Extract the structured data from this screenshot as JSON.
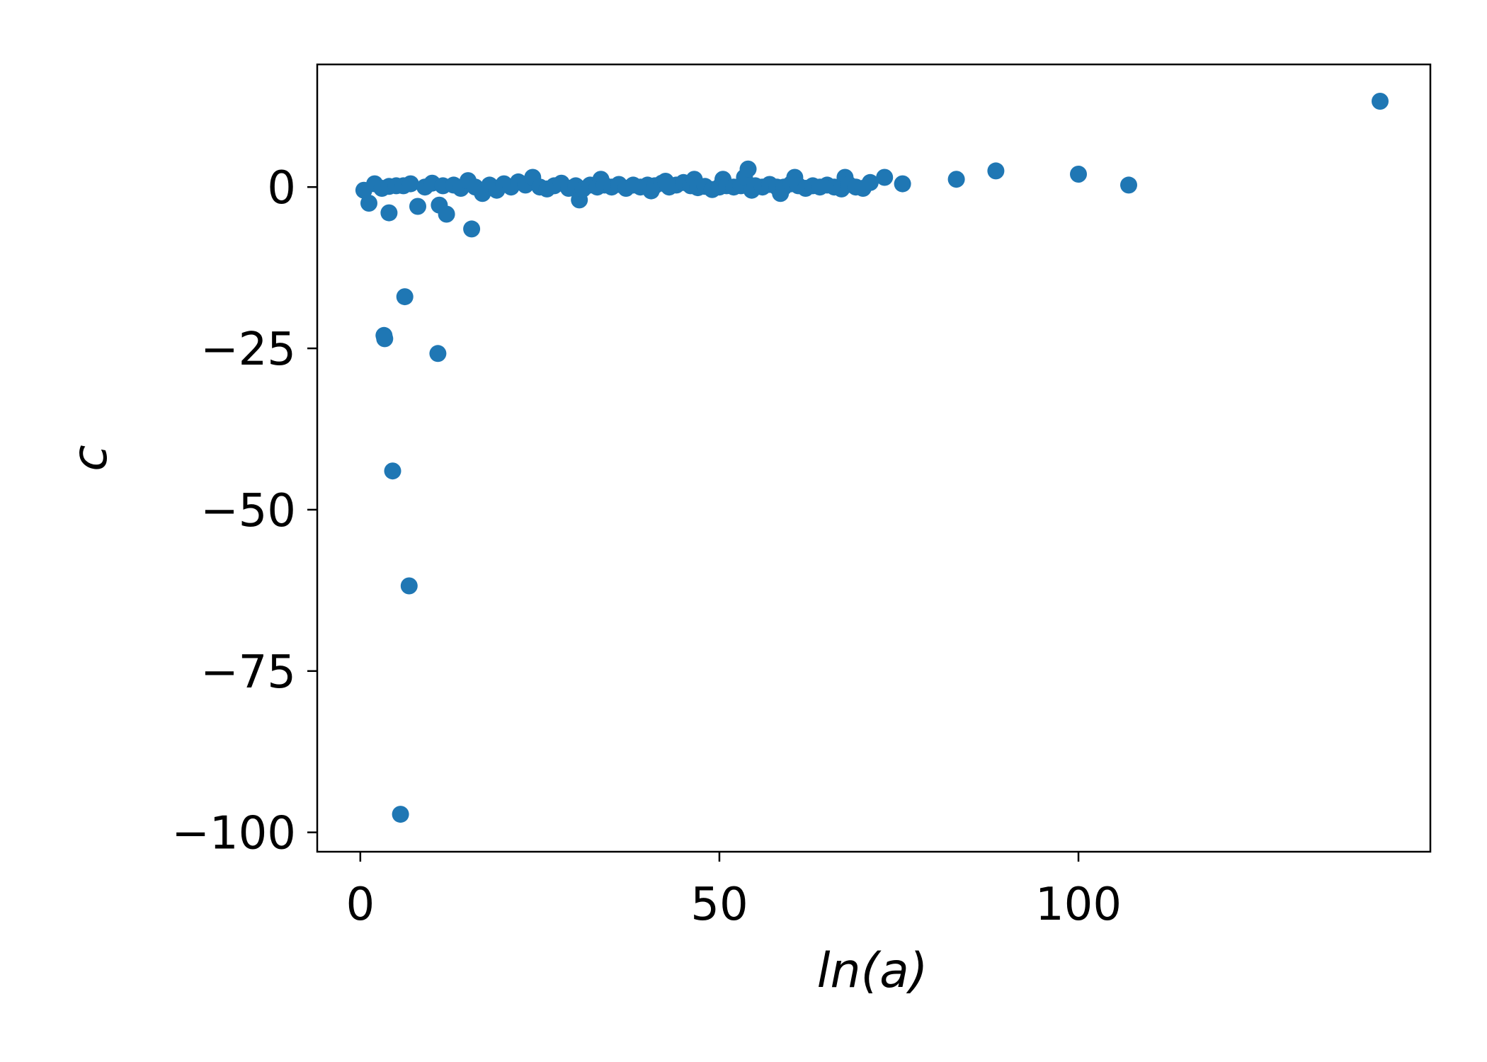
{
  "chart_data": {
    "type": "scatter",
    "title": "",
    "xlabel": "ln(a)",
    "ylabel": "c",
    "xlim": [
      -6,
      149
    ],
    "ylim": [
      -103,
      19
    ],
    "xticks": [
      0,
      50,
      100
    ],
    "xtick_labels": [
      "0",
      "50",
      "100"
    ],
    "yticks": [
      0,
      -25,
      -50,
      -75,
      -100
    ],
    "ytick_labels": [
      "0",
      "−25",
      "−50",
      "−75",
      "−100"
    ],
    "grid": false,
    "legend": "none",
    "marker_color": "#1f77b4",
    "series": [
      {
        "points": [
          [
            0.5,
            -0.5
          ],
          [
            1.2,
            -2.5
          ],
          [
            2.0,
            0.5
          ],
          [
            3.0,
            -0.2
          ],
          [
            4.0,
            0.1
          ],
          [
            5.0,
            0.2
          ],
          [
            4.0,
            -4.0
          ],
          [
            6.0,
            0.2
          ],
          [
            7.0,
            0.5
          ],
          [
            8.0,
            -3.0
          ],
          [
            9.0,
            0.0
          ],
          [
            10.0,
            0.6
          ],
          [
            11.0,
            -2.8
          ],
          [
            11.5,
            0.2
          ],
          [
            12.0,
            -4.2
          ],
          [
            13.0,
            0.3
          ],
          [
            14.0,
            -0.2
          ],
          [
            15.0,
            1.0
          ],
          [
            15.5,
            -6.5
          ],
          [
            16.0,
            0.0
          ],
          [
            17.0,
            -1.0
          ],
          [
            18.0,
            0.3
          ],
          [
            19.0,
            -0.5
          ],
          [
            20.0,
            0.5
          ],
          [
            21.0,
            0.0
          ],
          [
            22.0,
            0.8
          ],
          [
            23.0,
            0.3
          ],
          [
            24.0,
            1.5
          ],
          [
            25.0,
            0.0
          ],
          [
            26.0,
            -0.3
          ],
          [
            27.0,
            0.2
          ],
          [
            28.0,
            0.6
          ],
          [
            29.0,
            -0.2
          ],
          [
            30.0,
            0.2
          ],
          [
            30.5,
            -2.0
          ],
          [
            31.0,
            -0.3
          ],
          [
            32.0,
            0.3
          ],
          [
            33.0,
            0.0
          ],
          [
            33.5,
            1.2
          ],
          [
            34.0,
            0.3
          ],
          [
            35.0,
            0.0
          ],
          [
            36.0,
            0.4
          ],
          [
            37.0,
            -0.2
          ],
          [
            38.0,
            0.3
          ],
          [
            39.0,
            0.0
          ],
          [
            40.0,
            0.3
          ],
          [
            40.5,
            -0.6
          ],
          [
            41.0,
            0.2
          ],
          [
            42.0,
            0.6
          ],
          [
            42.5,
            0.9
          ],
          [
            43.0,
            0.0
          ],
          [
            44.0,
            0.3
          ],
          [
            45.0,
            0.7
          ],
          [
            46.0,
            0.2
          ],
          [
            46.5,
            1.2
          ],
          [
            47.0,
            -0.1
          ],
          [
            48.0,
            0.1
          ],
          [
            49.0,
            -0.4
          ],
          [
            50.0,
            0.0
          ],
          [
            50.5,
            1.2
          ],
          [
            51.0,
            0.2
          ],
          [
            52.0,
            0.0
          ],
          [
            53.0,
            0.2
          ],
          [
            53.5,
            1.5
          ],
          [
            54.0,
            2.8
          ],
          [
            54.5,
            -0.5
          ],
          [
            55.0,
            0.2
          ],
          [
            56.0,
            0.0
          ],
          [
            57.0,
            0.4
          ],
          [
            58.0,
            0.0
          ],
          [
            58.5,
            -1.0
          ],
          [
            59.0,
            0.0
          ],
          [
            60.0,
            0.5
          ],
          [
            60.5,
            1.5
          ],
          [
            61.0,
            0.2
          ],
          [
            62.0,
            -0.2
          ],
          [
            63.0,
            0.2
          ],
          [
            64.0,
            0.0
          ],
          [
            65.0,
            0.3
          ],
          [
            66.0,
            0.0
          ],
          [
            67.0,
            -0.3
          ],
          [
            67.5,
            1.5
          ],
          [
            68.0,
            0.4
          ],
          [
            69.0,
            0.0
          ],
          [
            70.0,
            -0.2
          ],
          [
            71.0,
            0.7
          ],
          [
            73.0,
            1.5
          ],
          [
            75.5,
            0.5
          ],
          [
            83.0,
            1.2
          ],
          [
            88.5,
            2.5
          ],
          [
            100.0,
            2.0
          ],
          [
            107.0,
            0.3
          ],
          [
            142.0,
            13.3
          ],
          [
            3.3,
            -23.0
          ],
          [
            3.4,
            -23.5
          ],
          [
            6.2,
            -17.0
          ],
          [
            10.8,
            -25.8
          ],
          [
            4.5,
            -44.0
          ],
          [
            6.8,
            -61.8
          ],
          [
            5.6,
            -97.2
          ]
        ]
      }
    ]
  }
}
